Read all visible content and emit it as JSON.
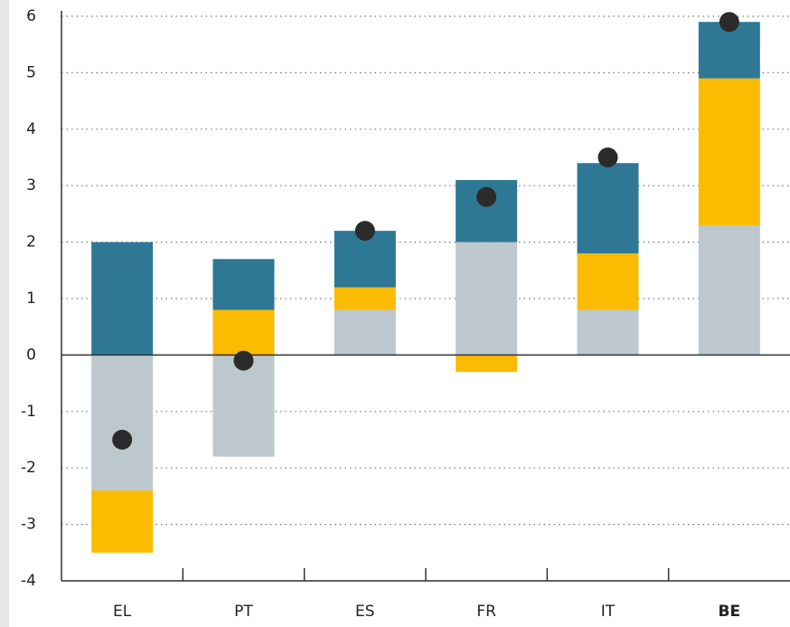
{
  "chart_data": {
    "type": "bar",
    "stacked": true,
    "categories": [
      "EL",
      "PT",
      "ES",
      "FR",
      "IT",
      "BE"
    ],
    "series": [
      {
        "color": "#bcc8ce",
        "values": [
          -2.4,
          -1.8,
          0.8,
          2.0,
          0.8,
          2.3
        ]
      },
      {
        "color": "#fbbb00",
        "values": [
          -1.1,
          0.8,
          0.4,
          -0.3,
          1.0,
          2.6
        ]
      },
      {
        "color": "#2e7895",
        "values": [
          2.0,
          0.9,
          1.0,
          1.1,
          1.6,
          1.0
        ]
      }
    ],
    "points": {
      "color": "#2b2b2b",
      "values": [
        -1.5,
        -0.1,
        2.2,
        2.8,
        3.5,
        5.9
      ]
    },
    "ylim": [
      -4,
      6
    ],
    "yticks": [
      -4,
      -3,
      -2,
      -1,
      0,
      1,
      2,
      3,
      4,
      5,
      6
    ],
    "grid": true
  }
}
